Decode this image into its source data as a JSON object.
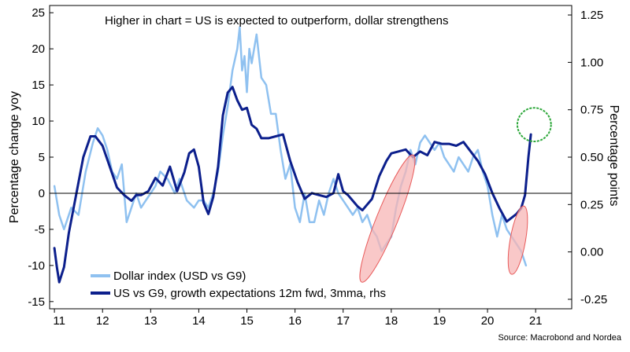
{
  "chart_data": {
    "type": "line",
    "annotation": "Higher in chart = US is expected to outperform, dollar strengthens",
    "ylabel_left": "Percentage change yoy",
    "ylabel_right": "Percentage points",
    "source": "Source: Macrobond and Nordea",
    "ylim_left": [
      -16,
      26
    ],
    "ylim_right": [
      -0.3,
      1.3
    ],
    "xlim": [
      2010.9,
      2021.75
    ],
    "left_ticks": [
      25,
      20,
      15,
      10,
      5,
      0,
      -5,
      -10,
      -15
    ],
    "left_tick_labels": [
      "25",
      "20",
      "15",
      "10",
      "5",
      "0",
      "-5",
      "-10",
      "-15"
    ],
    "right_ticks": [
      1.25,
      1.0,
      0.75,
      0.5,
      0.25,
      0.0,
      -0.25
    ],
    "right_tick_labels": [
      "1.25",
      "1.00",
      "0.75",
      "0.50",
      "0.25",
      "0.00",
      "-0.25"
    ],
    "x_tick_labels": [
      {
        "x": 2011.1,
        "label": "11"
      },
      {
        "x": 2012.0,
        "label": "12"
      },
      {
        "x": 2013.0,
        "label": "13"
      },
      {
        "x": 2014.0,
        "label": "14"
      },
      {
        "x": 2015.0,
        "label": "15"
      },
      {
        "x": 2016.0,
        "label": "16"
      },
      {
        "x": 2017.0,
        "label": "17"
      },
      {
        "x": 2018.0,
        "label": "18"
      },
      {
        "x": 2019.0,
        "label": "19"
      },
      {
        "x": 2020.0,
        "label": "20"
      },
      {
        "x": 2021.0,
        "label": "21"
      }
    ],
    "series": [
      {
        "name": "Dollar index (USD vs G9)",
        "axis": "left",
        "color": "#8fc1f0",
        "points": [
          [
            2011.0,
            1
          ],
          [
            2011.1,
            -3
          ],
          [
            2011.2,
            -5
          ],
          [
            2011.35,
            -2
          ],
          [
            2011.5,
            -3
          ],
          [
            2011.65,
            3
          ],
          [
            2011.8,
            7
          ],
          [
            2011.9,
            9
          ],
          [
            2012.0,
            8
          ],
          [
            2012.1,
            6
          ],
          [
            2012.2,
            3
          ],
          [
            2012.3,
            2
          ],
          [
            2012.4,
            4
          ],
          [
            2012.5,
            -4
          ],
          [
            2012.6,
            -2
          ],
          [
            2012.7,
            0
          ],
          [
            2012.8,
            -2
          ],
          [
            2012.9,
            -1
          ],
          [
            2013.0,
            0
          ],
          [
            2013.1,
            1
          ],
          [
            2013.2,
            3
          ],
          [
            2013.35,
            2
          ],
          [
            2013.5,
            0
          ],
          [
            2013.6,
            2
          ],
          [
            2013.75,
            -1
          ],
          [
            2013.9,
            -2
          ],
          [
            2014.0,
            -1
          ],
          [
            2014.1,
            -1
          ],
          [
            2014.2,
            -2
          ],
          [
            2014.3,
            0
          ],
          [
            2014.4,
            3
          ],
          [
            2014.5,
            8
          ],
          [
            2014.6,
            12
          ],
          [
            2014.7,
            17
          ],
          [
            2014.8,
            20
          ],
          [
            2014.85,
            23
          ],
          [
            2014.9,
            17
          ],
          [
            2014.95,
            19
          ],
          [
            2015.0,
            14
          ],
          [
            2015.05,
            20
          ],
          [
            2015.1,
            18
          ],
          [
            2015.2,
            22
          ],
          [
            2015.3,
            16
          ],
          [
            2015.4,
            15
          ],
          [
            2015.5,
            11
          ],
          [
            2015.6,
            11
          ],
          [
            2015.7,
            6
          ],
          [
            2015.8,
            2
          ],
          [
            2015.9,
            4
          ],
          [
            2016.0,
            -2
          ],
          [
            2016.1,
            -4
          ],
          [
            2016.2,
            0
          ],
          [
            2016.3,
            -4
          ],
          [
            2016.4,
            -4
          ],
          [
            2016.5,
            -1
          ],
          [
            2016.6,
            -3
          ],
          [
            2016.7,
            0
          ],
          [
            2016.8,
            2
          ],
          [
            2016.9,
            0
          ],
          [
            2017.0,
            -1
          ],
          [
            2017.1,
            -2
          ],
          [
            2017.2,
            -3
          ],
          [
            2017.3,
            -2
          ],
          [
            2017.4,
            -4
          ],
          [
            2017.5,
            -3
          ],
          [
            2017.6,
            -5
          ],
          [
            2017.7,
            -6
          ],
          [
            2017.8,
            -8
          ],
          [
            2017.9,
            -7
          ],
          [
            2018.0,
            -6
          ],
          [
            2018.1,
            -2
          ],
          [
            2018.2,
            1
          ],
          [
            2018.3,
            3
          ],
          [
            2018.4,
            6
          ],
          [
            2018.5,
            4
          ],
          [
            2018.6,
            7
          ],
          [
            2018.7,
            8
          ],
          [
            2018.8,
            7
          ],
          [
            2018.9,
            6
          ],
          [
            2019.0,
            7
          ],
          [
            2019.1,
            5
          ],
          [
            2019.2,
            4
          ],
          [
            2019.3,
            3
          ],
          [
            2019.4,
            5
          ],
          [
            2019.5,
            4
          ],
          [
            2019.6,
            3
          ],
          [
            2019.7,
            5
          ],
          [
            2019.8,
            6
          ],
          [
            2019.9,
            3
          ],
          [
            2020.0,
            1
          ],
          [
            2020.1,
            -3
          ],
          [
            2020.2,
            -6
          ],
          [
            2020.3,
            -3
          ],
          [
            2020.4,
            -5
          ],
          [
            2020.5,
            -6
          ],
          [
            2020.6,
            -7
          ],
          [
            2020.7,
            -8
          ],
          [
            2020.8,
            -10
          ]
        ]
      },
      {
        "name": "US vs G9, growth expectations 12m fwd, 3mma, rhs",
        "axis": "right",
        "color": "#0c1f8c",
        "points": [
          [
            2011.0,
            0.02
          ],
          [
            2011.05,
            -0.08
          ],
          [
            2011.1,
            -0.16
          ],
          [
            2011.2,
            -0.08
          ],
          [
            2011.3,
            0.1
          ],
          [
            2011.45,
            0.3
          ],
          [
            2011.6,
            0.5
          ],
          [
            2011.75,
            0.61
          ],
          [
            2011.85,
            0.61
          ],
          [
            2012.0,
            0.56
          ],
          [
            2012.15,
            0.45
          ],
          [
            2012.3,
            0.34
          ],
          [
            2012.45,
            0.3
          ],
          [
            2012.6,
            0.27
          ],
          [
            2012.7,
            0.3
          ],
          [
            2012.8,
            0.3
          ],
          [
            2012.95,
            0.32
          ],
          [
            2013.1,
            0.39
          ],
          [
            2013.25,
            0.35
          ],
          [
            2013.4,
            0.45
          ],
          [
            2013.55,
            0.32
          ],
          [
            2013.7,
            0.42
          ],
          [
            2013.8,
            0.52
          ],
          [
            2013.9,
            0.54
          ],
          [
            2014.0,
            0.45
          ],
          [
            2014.1,
            0.26
          ],
          [
            2014.2,
            0.2
          ],
          [
            2014.3,
            0.29
          ],
          [
            2014.4,
            0.45
          ],
          [
            2014.5,
            0.72
          ],
          [
            2014.6,
            0.84
          ],
          [
            2014.7,
            0.87
          ],
          [
            2014.8,
            0.8
          ],
          [
            2014.9,
            0.75
          ],
          [
            2015.0,
            0.76
          ],
          [
            2015.1,
            0.67
          ],
          [
            2015.2,
            0.65
          ],
          [
            2015.3,
            0.6
          ],
          [
            2015.45,
            0.6
          ],
          [
            2015.6,
            0.61
          ],
          [
            2015.75,
            0.62
          ],
          [
            2015.9,
            0.48
          ],
          [
            2016.05,
            0.37
          ],
          [
            2016.2,
            0.28
          ],
          [
            2016.35,
            0.31
          ],
          [
            2016.5,
            0.3
          ],
          [
            2016.65,
            0.29
          ],
          [
            2016.8,
            0.31
          ],
          [
            2016.9,
            0.41
          ],
          [
            2017.0,
            0.32
          ],
          [
            2017.1,
            0.3
          ],
          [
            2017.2,
            0.27
          ],
          [
            2017.3,
            0.24
          ],
          [
            2017.4,
            0.22
          ],
          [
            2017.5,
            0.25
          ],
          [
            2017.6,
            0.28
          ],
          [
            2017.75,
            0.4
          ],
          [
            2017.9,
            0.48
          ],
          [
            2018.0,
            0.52
          ],
          [
            2018.15,
            0.53
          ],
          [
            2018.3,
            0.54
          ],
          [
            2018.45,
            0.5
          ],
          [
            2018.6,
            0.53
          ],
          [
            2018.75,
            0.51
          ],
          [
            2018.9,
            0.58
          ],
          [
            2019.05,
            0.57
          ],
          [
            2019.2,
            0.57
          ],
          [
            2019.35,
            0.56
          ],
          [
            2019.5,
            0.58
          ],
          [
            2019.65,
            0.53
          ],
          [
            2019.8,
            0.48
          ],
          [
            2019.95,
            0.41
          ],
          [
            2020.1,
            0.31
          ],
          [
            2020.25,
            0.23
          ],
          [
            2020.4,
            0.16
          ],
          [
            2020.5,
            0.18
          ],
          [
            2020.6,
            0.2
          ],
          [
            2020.7,
            0.23
          ],
          [
            2020.78,
            0.3
          ],
          [
            2020.85,
            0.5
          ],
          [
            2020.9,
            0.62
          ]
        ]
      }
    ],
    "legend": [
      {
        "label": "Dollar index (USD vs G9)",
        "color": "#8fc1f0"
      },
      {
        "label": "US vs G9, growth expectations 12m fwd, 3mma, rhs",
        "color": "#0c1f8c"
      }
    ],
    "highlights": [
      {
        "shape": "ellipse",
        "color": "#e85a5a",
        "fill": "#f7b6b6",
        "cx": 2017.92,
        "cy": -3.5,
        "rx_years": 0.22,
        "ry_units": 9.5,
        "angle": 22
      },
      {
        "shape": "ellipse",
        "color": "#e85a5a",
        "fill": "#f7b6b6",
        "cx": 2020.63,
        "cy": -6.5,
        "rx_years": 0.16,
        "ry_units": 4.8,
        "angle": 10
      },
      {
        "shape": "circle",
        "color": "#2ea83b",
        "fill": "none",
        "cx": 2020.97,
        "cy": 9.5,
        "r_years": 0.35
      }
    ]
  }
}
